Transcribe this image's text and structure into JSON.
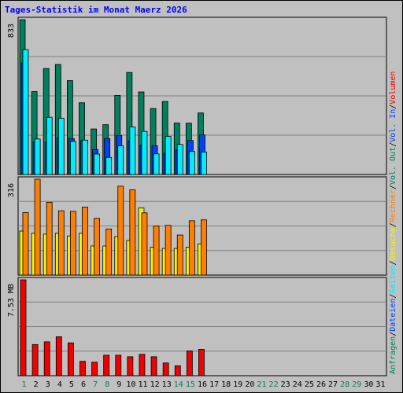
{
  "title": "Tages-Statistik im Monat Maerz 2026",
  "colors": {
    "anfragen": "#00805c",
    "dateien": "#0042f5",
    "seiten": "#00ecff",
    "besuche": "#f5f200",
    "rechner": "#ff7f00",
    "vol_out": "#00805c",
    "vol_in": "#0042f5",
    "volumen": "#f20000",
    "weekend_label": "#00805c",
    "weekday_label": "#000000",
    "background": "#c0c0c0",
    "gridline": "#808080"
  },
  "chart_data": [
    {
      "type": "bar",
      "panel": "top",
      "ymax_label": "833",
      "ylim": [
        0,
        833
      ],
      "categories": [
        "1",
        "2",
        "3",
        "4",
        "5",
        "6",
        "7",
        "8",
        "9",
        "10",
        "11",
        "12",
        "13",
        "14",
        "15",
        "16",
        "17",
        "18",
        "19",
        "20",
        "21",
        "22",
        "23",
        "24",
        "25",
        "26",
        "27",
        "28",
        "29",
        "30",
        "31"
      ],
      "weekend_days": [
        "1",
        "7",
        "8",
        "14",
        "15",
        "21",
        "22",
        "28",
        "29"
      ],
      "series": [
        {
          "name": "Anfragen",
          "values": [
            833,
            446,
            570,
            592,
            505,
            386,
            245,
            268,
            425,
            549,
            444,
            355,
            393,
            277,
            276,
            331,
            0,
            0,
            0,
            0,
            0,
            0,
            0,
            0,
            0,
            0,
            0,
            0,
            0,
            0,
            0
          ]
        },
        {
          "name": "Dateien",
          "values": [
            600,
            176,
            174,
            196,
            193,
            182,
            134,
            193,
            210,
            180,
            158,
            155,
            115,
            131,
            183,
            213,
            0,
            0,
            0,
            0,
            0,
            0,
            0,
            0,
            0,
            0,
            0,
            0,
            0,
            0,
            0
          ]
        },
        {
          "name": "Seiten",
          "values": [
            672,
            191,
            308,
            303,
            178,
            185,
            110,
            92,
            154,
            256,
            232,
            111,
            205,
            162,
            124,
            121,
            0,
            0,
            0,
            0,
            0,
            0,
            0,
            0,
            0,
            0,
            0,
            0,
            0,
            0,
            0
          ]
        }
      ]
    },
    {
      "type": "bar",
      "panel": "middle",
      "ymax_label": "316",
      "ylim": [
        0,
        316
      ],
      "series": [
        {
          "name": "Besuche",
          "values": [
            145,
            138,
            135,
            138,
            129,
            138,
            96,
            96,
            127,
            114,
            221,
            92,
            88,
            88,
            92,
            103,
            0,
            0,
            0,
            0,
            0,
            0,
            0,
            0,
            0,
            0,
            0,
            0,
            0,
            0,
            0
          ]
        },
        {
          "name": "Rechner",
          "values": [
            206,
            316,
            240,
            212,
            210,
            224,
            187,
            152,
            293,
            281,
            205,
            162,
            164,
            132,
            179,
            182,
            0,
            0,
            0,
            0,
            0,
            0,
            0,
            0,
            0,
            0,
            0,
            0,
            0,
            0,
            0
          ]
        }
      ]
    },
    {
      "type": "bar",
      "panel": "bottom",
      "ymax_label": "7.53 MB",
      "ylim": [
        0,
        7.53
      ],
      "series": [
        {
          "name": "Volumen",
          "values": [
            7.53,
            2.45,
            2.66,
            3.06,
            2.58,
            1.13,
            1.06,
            1.61,
            1.61,
            1.49,
            1.68,
            1.49,
            1.0,
            0.78,
            1.95,
            2.07,
            0,
            0,
            0,
            0,
            0,
            0,
            0,
            0,
            0,
            0,
            0,
            0,
            0,
            0,
            0
          ]
        }
      ]
    }
  ],
  "legend_right": [
    {
      "text": "Anfragen",
      "color_key": "anfragen"
    },
    {
      "text": "/",
      "color_key": "weekday_label"
    },
    {
      "text": "Dateien",
      "color_key": "dateien"
    },
    {
      "text": "/",
      "color_key": "weekday_label"
    },
    {
      "text": "Seiten",
      "color_key": "seiten"
    },
    {
      "text": "/",
      "color_key": "weekday_label"
    },
    {
      "text": "Besuche",
      "color_key": "besuche"
    },
    {
      "text": "/",
      "color_key": "weekday_label"
    },
    {
      "text": "Rechner",
      "color_key": "rechner"
    },
    {
      "text": "/",
      "color_key": "weekday_label"
    },
    {
      "text": "Vol. Out",
      "color_key": "vol_out"
    },
    {
      "text": "/",
      "color_key": "weekday_label"
    },
    {
      "text": "Vol. In",
      "color_key": "vol_in"
    },
    {
      "text": "/",
      "color_key": "weekday_label"
    },
    {
      "text": "Volumen",
      "color_key": "volumen"
    }
  ]
}
